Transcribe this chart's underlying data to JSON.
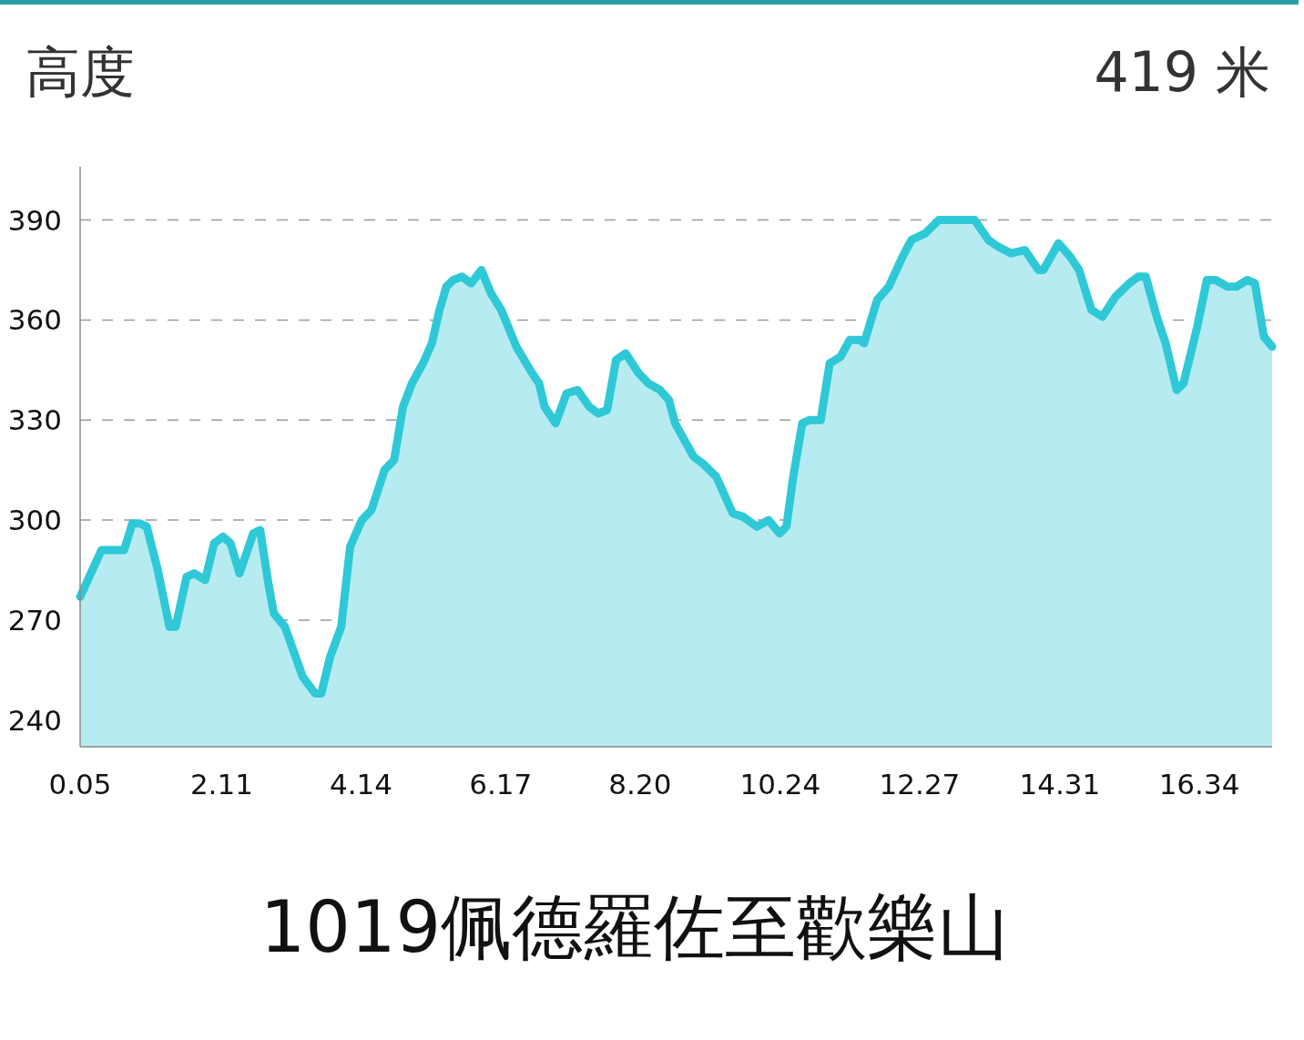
{
  "chart_data": {
    "type": "area",
    "title": "1019佩德羅佐至歡樂山",
    "ylabel": "高度",
    "annotations": [
      "419 米"
    ],
    "color": "#2fc8d6",
    "grid": "y",
    "line_style": "solid",
    "xlim": [
      0.05,
      17.4
    ],
    "ylim": [
      232,
      406
    ],
    "xticks": [
      0.05,
      2.11,
      4.14,
      6.17,
      {
        "value": 8.2,
        "label": "8.20"
      },
      10.24,
      12.27,
      14.31,
      16.34
    ],
    "yticks": [
      240,
      270,
      300,
      330,
      360,
      390
    ],
    "x": [
      0.05,
      0.36,
      0.52,
      0.69,
      0.81,
      0.92,
      1.02,
      1.18,
      1.35,
      1.44,
      1.6,
      1.71,
      1.87,
      2.0,
      2.13,
      2.24,
      2.37,
      2.57,
      2.67,
      2.79,
      2.87,
      3.03,
      3.29,
      3.47,
      3.56,
      3.69,
      3.85,
      3.98,
      4.15,
      4.29,
      4.48,
      4.62,
      4.75,
      4.88,
      5.04,
      5.17,
      5.28,
      5.38,
      5.48,
      5.61,
      5.74,
      5.89,
      6.03,
      6.18,
      6.4,
      6.63,
      6.73,
      6.81,
      6.97,
      7.13,
      7.29,
      7.46,
      7.59,
      7.72,
      7.85,
      7.99,
      8.18,
      8.32,
      8.49,
      8.62,
      8.71,
      8.98,
      9.11,
      9.31,
      9.44,
      9.55,
      9.7,
      9.9,
      10.07,
      10.23,
      10.33,
      10.43,
      10.56,
      10.67,
      10.83,
      10.96,
      11.12,
      11.25,
      11.4,
      11.46,
      11.65,
      11.82,
      12.02,
      12.15,
      12.35,
      12.55,
      12.74,
      12.92,
      13.07,
      13.27,
      13.41,
      13.6,
      13.8,
      14.0,
      14.07,
      14.29,
      14.46,
      14.59,
      14.77,
      14.93,
      15.12,
      15.32,
      15.45,
      15.56,
      15.72,
      15.85,
      16.01,
      16.11,
      16.31,
      16.45,
      16.58,
      16.75,
      16.88,
      17.04,
      17.15,
      17.28,
      17.4
    ],
    "values": [
      277,
      291,
      291,
      291,
      299,
      299,
      298,
      285,
      268,
      268,
      283,
      284,
      282,
      293,
      295,
      293,
      284,
      296,
      297,
      281,
      272,
      268,
      253,
      248,
      248,
      259,
      268,
      292,
      300,
      303,
      315,
      318,
      334,
      341,
      347,
      353,
      363,
      370,
      372,
      373,
      371,
      375,
      368,
      363,
      352,
      344,
      341,
      334,
      329,
      338,
      339,
      334,
      332,
      333,
      348,
      350,
      344,
      341,
      339,
      336,
      329,
      319,
      317,
      313,
      307,
      302,
      301,
      298,
      300,
      296,
      298,
      313,
      329,
      330,
      330,
      347,
      349,
      354,
      354,
      353,
      366,
      370,
      379,
      384,
      386,
      390,
      390,
      390,
      390,
      384,
      382,
      380,
      381,
      375,
      375,
      383,
      379,
      375,
      363,
      361,
      367,
      371,
      373,
      373,
      361,
      353,
      339,
      341,
      358,
      372,
      372,
      370,
      370,
      372,
      371,
      355,
      352
    ]
  }
}
